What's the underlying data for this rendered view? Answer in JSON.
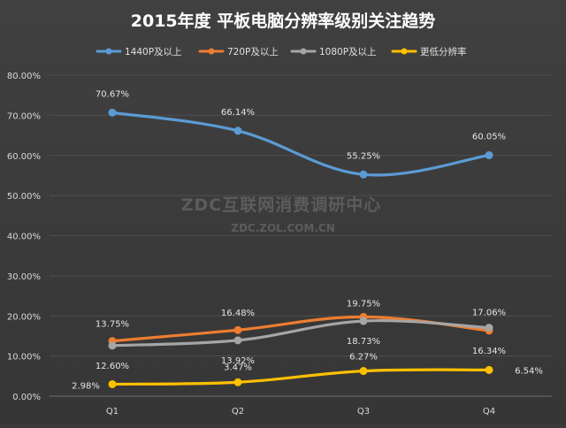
{
  "chart_data": {
    "type": "line",
    "title": "2015年度 平板电脑分辨率级别关注趋势",
    "categories": [
      "Q1",
      "Q2",
      "Q3",
      "Q4"
    ],
    "ylim": [
      0,
      80
    ],
    "ytick_step": 10,
    "ytick_labels": [
      "0.00%",
      "10.00%",
      "20.00%",
      "30.00%",
      "40.00%",
      "50.00%",
      "60.00%",
      "70.00%",
      "80.00%"
    ],
    "legend_position": "top",
    "grid": true,
    "series": [
      {
        "name": "1440P及以上",
        "color": "#5b9bd5",
        "values": [
          70.67,
          66.14,
          55.25,
          60.05
        ],
        "labels": [
          "70.67%",
          "66.14%",
          "55.25%",
          "60.05%"
        ]
      },
      {
        "name": "720P及以上",
        "color": "#ed7d31",
        "values": [
          13.75,
          16.48,
          19.75,
          16.34
        ],
        "labels": [
          "13.75%",
          "16.48%",
          "19.75%",
          "16.34%"
        ]
      },
      {
        "name": "1080P及以上",
        "color": "#a5a5a5",
        "values": [
          12.6,
          13.92,
          18.73,
          17.06
        ],
        "labels": [
          "12.60%",
          "13.92%",
          "18.73%",
          "17.06%"
        ]
      },
      {
        "name": "更低分辨率",
        "color": "#ffc000",
        "values": [
          2.98,
          3.47,
          6.27,
          6.54
        ],
        "labels": [
          "2.98%",
          "3.47%",
          "6.27%",
          "6.54%"
        ]
      }
    ],
    "watermark": {
      "line1": "ZDC互联网消费调研中心",
      "line2": "ZDC.ZOL.COM.CN"
    }
  }
}
